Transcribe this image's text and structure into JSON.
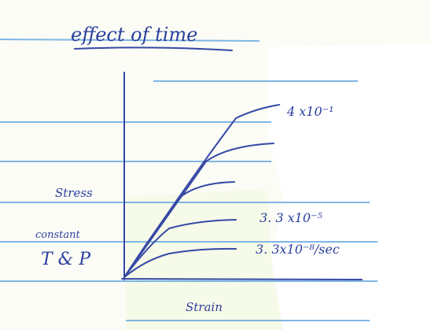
{
  "title": "effect of time",
  "axes": {
    "y_label": "Stress",
    "x_label": "Strain"
  },
  "conditions": [
    "constant",
    "T & P"
  ],
  "curve_labels": [
    "4 x10⁻¹",
    "3. 3 x10⁻⁵",
    "3. 3x10⁻⁸/sec"
  ]
}
